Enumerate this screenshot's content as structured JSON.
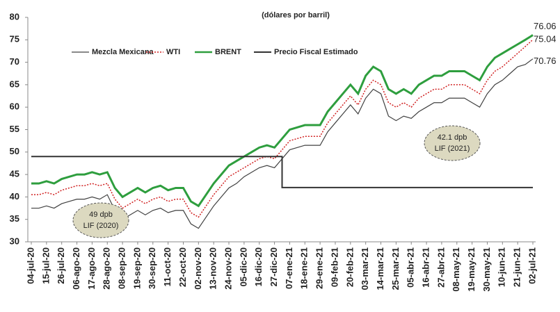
{
  "chart_data": {
    "type": "line",
    "subtitle": "(dólares por barril)",
    "categories": [
      "04-jul-20",
      null,
      "15-jul-20",
      null,
      "26-jul-20",
      null,
      "06-ago-20",
      null,
      "17-ago-20",
      null,
      "28-ago-20",
      null,
      "08-sep-20",
      null,
      "19-sep-20",
      null,
      "30-sep-20",
      null,
      "11-oct-20",
      null,
      "22-oct-20",
      null,
      "02-nov-20",
      null,
      "13-nov-20",
      null,
      "24-nov-20",
      null,
      "05-dic-20",
      null,
      "16-dic-20",
      null,
      "27-dic-20",
      null,
      "07-ene-21",
      null,
      "18-ene-21",
      null,
      "29-ene-21",
      null,
      "09-feb-21",
      null,
      "20-feb-21",
      null,
      "03-mar-21",
      null,
      "14-mar-21",
      null,
      "25-mar-21",
      null,
      "05-abr-21",
      null,
      "16-abr-21",
      null,
      "27-abr-21",
      null,
      "08-may-21",
      null,
      "19-may-21",
      null,
      "30-may-21",
      null,
      "10-jun-21",
      null,
      "21-jun-21",
      null,
      "02-jul-21"
    ],
    "series": [
      {
        "name": "Mezcla Mexicana",
        "color": "#404040",
        "style": "solid",
        "width": 1.2,
        "end_label": true,
        "values": [
          37.5,
          37.5,
          38,
          37.5,
          38.5,
          39,
          39.5,
          39.5,
          40,
          39.5,
          40.5,
          37,
          35,
          36,
          37,
          36,
          37,
          37.5,
          36.5,
          37,
          37,
          34,
          33,
          35.5,
          38,
          40,
          42,
          43,
          44.5,
          45.5,
          46.5,
          47,
          46.5,
          48.5,
          50.5,
          51,
          51.5,
          51.5,
          51.5,
          54.5,
          56.5,
          58.5,
          60.5,
          58.5,
          62,
          64,
          63,
          58,
          57,
          58,
          57.5,
          59,
          60,
          61,
          61,
          62,
          62,
          62,
          61,
          60,
          63,
          65,
          66,
          67.5,
          69,
          69.5,
          70.76
        ]
      },
      {
        "name": "WTI",
        "color": "#d02020",
        "style": "dotted",
        "width": 1.5,
        "end_label": true,
        "values": [
          40.5,
          40.5,
          41,
          40.5,
          41.5,
          42,
          42.5,
          42.5,
          43,
          42.5,
          43,
          39.5,
          37.5,
          38.5,
          39.5,
          38.5,
          39.5,
          40,
          39,
          39.5,
          39.5,
          36.5,
          35.5,
          38,
          40.5,
          42.5,
          44.5,
          45.5,
          46.5,
          47.5,
          48.5,
          49,
          48.5,
          50.5,
          52.5,
          53,
          53.5,
          53.5,
          53.5,
          56.5,
          58.5,
          60.5,
          62.5,
          60.5,
          64,
          66,
          65,
          61,
          60,
          61,
          60,
          62,
          63,
          64,
          64,
          65,
          65,
          65,
          64,
          63,
          66,
          68,
          69,
          70.5,
          72,
          73.5,
          75.04
        ]
      },
      {
        "name": "BRENT",
        "color": "#2e9e3e",
        "style": "solid",
        "width": 3,
        "end_label": true,
        "values": [
          43,
          43,
          43.5,
          43,
          44,
          44.5,
          45,
          45,
          45.5,
          45,
          45.5,
          42,
          40,
          41,
          42,
          41,
          42,
          42.5,
          41.5,
          42,
          42,
          39,
          38,
          40.5,
          43,
          45,
          47,
          48,
          49,
          50,
          51,
          51.5,
          51,
          53,
          55,
          55.5,
          56,
          56,
          56,
          59,
          61,
          63,
          65,
          63,
          67,
          69,
          68,
          64,
          63,
          64,
          63,
          65,
          66,
          67,
          67,
          68,
          68,
          68,
          67,
          66,
          69,
          71,
          72,
          73,
          74,
          75,
          76.06
        ]
      },
      {
        "name": "Precio Fiscal Estimado",
        "color": "#333333",
        "style": "solid",
        "width": 2,
        "step": true,
        "end_label": false,
        "values": [
          49,
          49,
          49,
          49,
          49,
          49,
          49,
          49,
          49,
          49,
          49,
          49,
          49,
          49,
          49,
          49,
          49,
          49,
          49,
          49,
          49,
          49,
          49,
          49,
          49,
          49,
          49,
          49,
          49,
          49,
          49,
          49,
          49,
          42.1,
          42.1,
          42.1,
          42.1,
          42.1,
          42.1,
          42.1,
          42.1,
          42.1,
          42.1,
          42.1,
          42.1,
          42.1,
          42.1,
          42.1,
          42.1,
          42.1,
          42.1,
          42.1,
          42.1,
          42.1,
          42.1,
          42.1,
          42.1,
          42.1,
          42.1,
          42.1,
          42.1,
          42.1,
          42.1,
          42.1,
          42.1,
          42.1,
          42.1
        ]
      }
    ],
    "annotations": [
      {
        "lines": [
          "49 dpb",
          "LIF (2020)"
        ]
      },
      {
        "lines": [
          "42.1 dpb",
          "LIF (2021)"
        ]
      }
    ],
    "ylim": [
      30,
      80
    ],
    "yticks": [
      30,
      35,
      40,
      45,
      50,
      55,
      60,
      65,
      70,
      75,
      80
    ],
    "grid": false
  }
}
